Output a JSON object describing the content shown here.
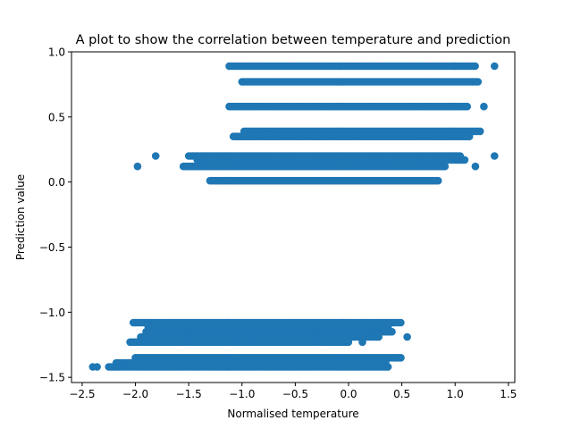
{
  "chart_data": {
    "type": "scatter",
    "title": "A plot to show the correlation between temperature and prediction",
    "xlabel": "Normalised temperature",
    "ylabel": "Prediction value",
    "xlim": [
      -2.6,
      1.56
    ],
    "ylim": [
      -1.54,
      1.0
    ],
    "xticks": [
      -2.5,
      -2.0,
      -1.5,
      -1.0,
      -0.5,
      0.0,
      0.5,
      1.0,
      1.5
    ],
    "xtick_labels": [
      "−2.5",
      "−2.0",
      "−1.5",
      "−1.0",
      "−0.5",
      "0.0",
      "0.5",
      "1.0",
      "1.5"
    ],
    "yticks": [
      -1.5,
      -1.0,
      -0.5,
      0.0,
      0.5,
      1.0
    ],
    "ytick_labels": [
      "−1.5",
      "−1.0",
      "−0.5",
      "0.0",
      "0.5",
      "1.0"
    ],
    "grid": false,
    "marker_color": "#1f77b4",
    "bands": [
      {
        "y": 0.89,
        "xmin": -1.1,
        "xmax": 1.2,
        "outliers": [
          -1.12,
          1.37
        ]
      },
      {
        "y": 0.77,
        "xmin": -1.0,
        "xmax": 1.23,
        "outliers": []
      },
      {
        "y": 0.58,
        "xmin": -1.12,
        "xmax": 1.12,
        "outliers": [
          1.27
        ]
      },
      {
        "y": 0.39,
        "xmin": -0.98,
        "xmax": 1.25,
        "outliers": []
      },
      {
        "y": 0.35,
        "xmin": -1.08,
        "xmax": 1.15,
        "outliers": []
      },
      {
        "y": 0.2,
        "xmin": -1.5,
        "xmax": 1.05,
        "outliers": [
          -1.81,
          1.37
        ]
      },
      {
        "y": 0.17,
        "xmin": -1.42,
        "xmax": 1.1,
        "outliers": []
      },
      {
        "y": 0.12,
        "xmin": -1.55,
        "xmax": 0.92,
        "outliers": [
          -1.98,
          1.19
        ]
      },
      {
        "y": 0.01,
        "xmin": -1.3,
        "xmax": 0.85,
        "outliers": []
      },
      {
        "y": -1.08,
        "xmin": -2.02,
        "xmax": 0.5,
        "outliers": []
      },
      {
        "y": -1.11,
        "xmin": -1.88,
        "xmax": 0.38,
        "outliers": []
      },
      {
        "y": -1.15,
        "xmin": -1.9,
        "xmax": 0.42,
        "outliers": []
      },
      {
        "y": -1.19,
        "xmin": -1.95,
        "xmax": 0.3,
        "outliers": [
          0.55
        ]
      },
      {
        "y": -1.23,
        "xmin": -2.05,
        "xmax": 0.0,
        "outliers": [
          0.13
        ]
      },
      {
        "y": -1.35,
        "xmin": -2.0,
        "xmax": 0.5,
        "outliers": []
      },
      {
        "y": -1.39,
        "xmin": -2.18,
        "xmax": 0.35,
        "outliers": []
      },
      {
        "y": -1.42,
        "xmin": -2.25,
        "xmax": 0.38,
        "outliers": [
          -2.4,
          -2.36
        ]
      }
    ]
  }
}
